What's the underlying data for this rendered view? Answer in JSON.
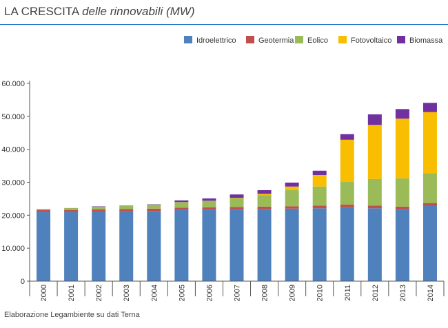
{
  "header": {
    "title_plain": "LA CRESCITA",
    "title_italic": "delle rinnovabili (MW)"
  },
  "source": "Elaborazione Legambiente su dati Terna",
  "chart_data": {
    "type": "bar",
    "stacked": true,
    "title": "LA CRESCITA delle rinnovabili (MW)",
    "xlabel": "",
    "ylabel": "",
    "ylim": [
      0,
      60000
    ],
    "yticks": [
      "0",
      "10.000",
      "20.000",
      "30.000",
      "40.000",
      "50.000",
      "60.000"
    ],
    "ytick_values": [
      0,
      10000,
      20000,
      30000,
      40000,
      50000,
      60000
    ],
    "grid": false,
    "legend_position": "top-right",
    "categories": [
      "2000",
      "2001",
      "2002",
      "2003",
      "2004",
      "2005",
      "2006",
      "2007",
      "2008",
      "2009",
      "2010",
      "2011",
      "2012",
      "2013",
      "2014"
    ],
    "series": [
      {
        "name": "Idroelettrico",
        "color": "#4f81bd",
        "values": [
          21000,
          21000,
          21100,
          21200,
          21300,
          21600,
          21700,
          21800,
          21900,
          22000,
          22100,
          22400,
          22100,
          21800,
          22800
        ]
      },
      {
        "name": "Geotermia",
        "color": "#c0504d",
        "values": [
          600,
          600,
          700,
          700,
          700,
          700,
          700,
          700,
          700,
          700,
          800,
          800,
          800,
          800,
          900
        ]
      },
      {
        "name": "Eolico",
        "color": "#9bbb59",
        "values": [
          300,
          600,
          800,
          900,
          1200,
          1700,
          2000,
          2700,
          3500,
          4900,
          5800,
          6900,
          8100,
          8600,
          9000
        ]
      },
      {
        "name": "Fotovoltaico",
        "color": "#f9be00",
        "values": [
          0,
          0,
          0,
          0,
          0,
          0,
          0,
          100,
          400,
          1100,
          3500,
          12800,
          16400,
          18100,
          18600
        ]
      },
      {
        "name": "Biomassa",
        "color": "#7030a0",
        "values": [
          0,
          0,
          100,
          100,
          100,
          500,
          700,
          1000,
          1100,
          1200,
          1300,
          1700,
          3200,
          2900,
          2800
        ]
      }
    ]
  }
}
